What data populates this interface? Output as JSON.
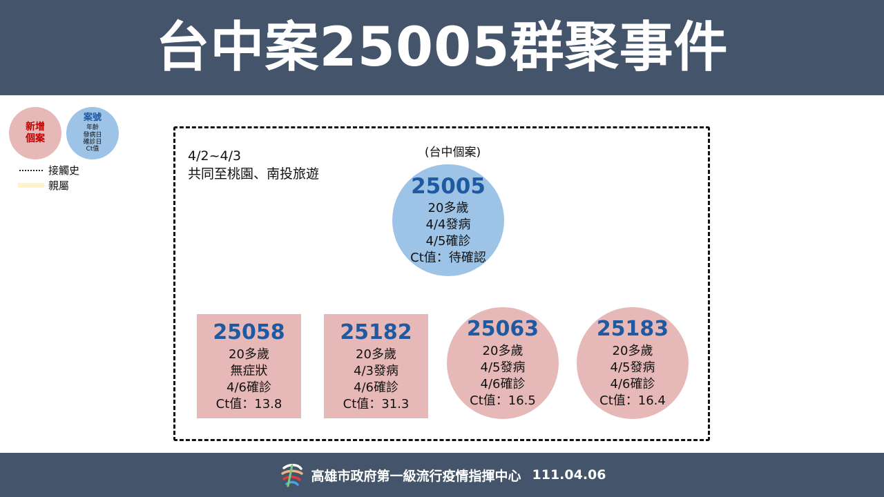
{
  "title": "台中案25005群聚事件",
  "legend": {
    "new_case": "新增\n個案",
    "key": {
      "title": "案號",
      "lines": [
        "年齡",
        "發病日",
        "確診日",
        "Ct值"
      ]
    },
    "contact_label": "接觸史",
    "family_label": "親屬"
  },
  "note": {
    "line1": "4/2~4/3",
    "line2": "共同至桃園、南投旅遊"
  },
  "main_case": {
    "caption": "(台中個案)",
    "id": "25005",
    "age": "20多歲",
    "onset": "4/4發病",
    "confirmed": "4/5確診",
    "ct": "Ct值：待確認"
  },
  "cases": [
    {
      "id": "25058",
      "age": "20多歲",
      "onset": "無症狀",
      "confirmed": "4/6確診",
      "ct": "Ct值：13.8"
    },
    {
      "id": "25182",
      "age": "20多歲",
      "onset": "4/3發病",
      "confirmed": "4/6確診",
      "ct": "Ct值：31.3"
    },
    {
      "id": "25063",
      "age": "20多歲",
      "onset": "4/5發病",
      "confirmed": "4/6確診",
      "ct": "Ct值：16.5"
    },
    {
      "id": "25183",
      "age": "20多歲",
      "onset": "4/5發病",
      "confirmed": "4/6確診",
      "ct": "Ct值：16.4"
    }
  ],
  "footer": {
    "org": "高雄市政府第一級流行疫情指揮中心",
    "date": "111.04.06"
  },
  "colors": {
    "header_bg": "#44546a",
    "new_case": "#e6b9b8",
    "source_case": "#9dc3e6",
    "case_id": "#1f5aa0",
    "family_band": "#fff2cc"
  }
}
